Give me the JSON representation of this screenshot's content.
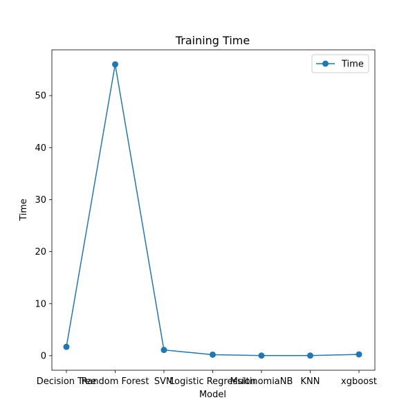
{
  "chart_data": {
    "type": "line",
    "title": "Training Time",
    "xlabel": "Model",
    "ylabel": "Time",
    "categories": [
      "Decision Tree",
      "Random Forest",
      "SVM",
      "Logistic Regression",
      "MultinomiaNB",
      "KNN",
      "xgboost"
    ],
    "series": [
      {
        "name": "Time",
        "values": [
          1.7,
          56.0,
          1.1,
          0.2,
          0.02,
          0.02,
          0.25
        ],
        "color": "#1f77b4"
      }
    ],
    "yticks": [
      0,
      10,
      20,
      30,
      40,
      50
    ],
    "ylim": [
      -2.8,
      58.8
    ],
    "grid": false,
    "legend": "top-right",
    "marker": "circle"
  }
}
